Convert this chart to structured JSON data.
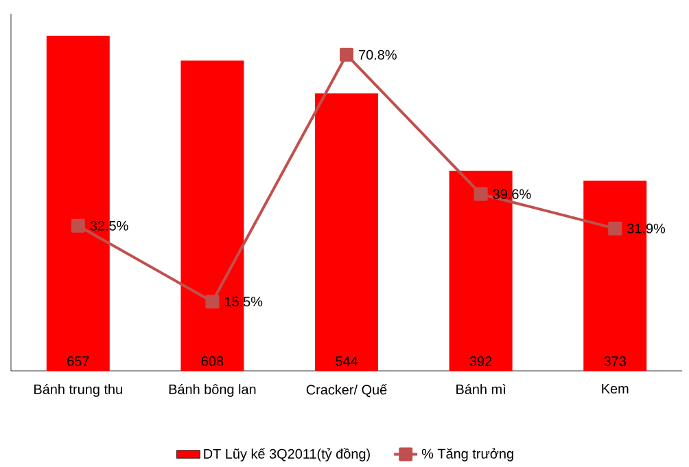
{
  "chart_data": {
    "type": "bar",
    "categories": [
      "Bánh trung thu",
      "Bánh bông lan",
      "Cracker/ Quế",
      "Bánh mì",
      "Kem"
    ],
    "series": [
      {
        "name": "DT Lũy kế 3Q2011(tỷ đồng)",
        "color": "#ff0000",
        "values": [
          657,
          608,
          544,
          392,
          373
        ],
        "value_labels": [
          "657",
          "608",
          "544",
          "392",
          "373"
        ]
      },
      {
        "name": "% Tăng trưởng",
        "type": "line",
        "axis": "y2",
        "color": "#c0504d",
        "marker": "square",
        "values": [
          32.5,
          15.5,
          70.8,
          39.6,
          31.9
        ],
        "value_labels": [
          "32.5%",
          "15.5%",
          "70.8%",
          "39.6%",
          "31.9%"
        ]
      }
    ],
    "ylim": [
      0,
      700
    ],
    "y2lim": [
      0,
      80
    ],
    "tick_labels": "x",
    "legend": "bottom"
  }
}
